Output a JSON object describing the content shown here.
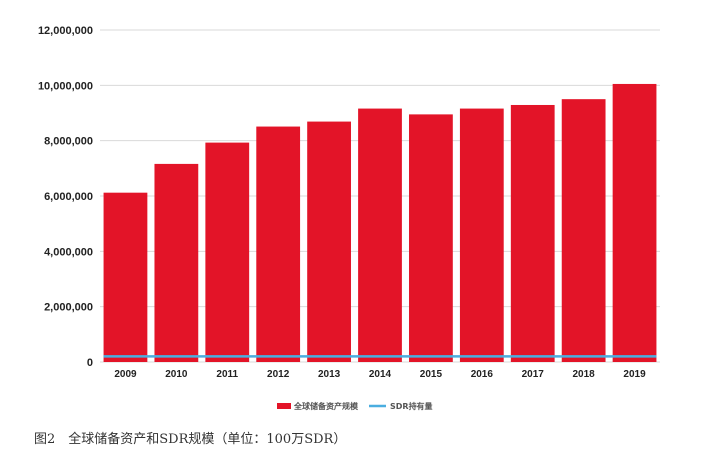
{
  "chart_data": {
    "type": "bar",
    "categories": [
      "2009",
      "2010",
      "2011",
      "2012",
      "2013",
      "2014",
      "2015",
      "2016",
      "2017",
      "2018",
      "2019"
    ],
    "series": [
      {
        "name": "全球储备资产规模",
        "kind": "bar",
        "color": "#e31428",
        "values": [
          6120000,
          7160000,
          7930000,
          8510000,
          8690000,
          9160000,
          8950000,
          9160000,
          9290000,
          9500000,
          10050000
        ]
      },
      {
        "name": "SDR持有量",
        "kind": "line",
        "color": "#4aaee0",
        "values": [
          205000,
          205000,
          205000,
          205000,
          205000,
          205000,
          205000,
          205000,
          205000,
          205000,
          205000
        ]
      }
    ],
    "ylim": [
      0,
      12000000
    ],
    "yticks": [
      0,
      2000000,
      4000000,
      6000000,
      8000000,
      10000000,
      12000000
    ],
    "ytick_labels": [
      "0",
      "2,000,000",
      "4,000,000",
      "6,000,000",
      "8,000,000",
      "10,000,000",
      "12,000,000"
    ],
    "grid": true,
    "legend_position": "bottom-center",
    "title": "",
    "xlabel": "",
    "ylabel": ""
  },
  "caption": "图2　全球储备资产和SDR规模（单位：100万SDR）"
}
